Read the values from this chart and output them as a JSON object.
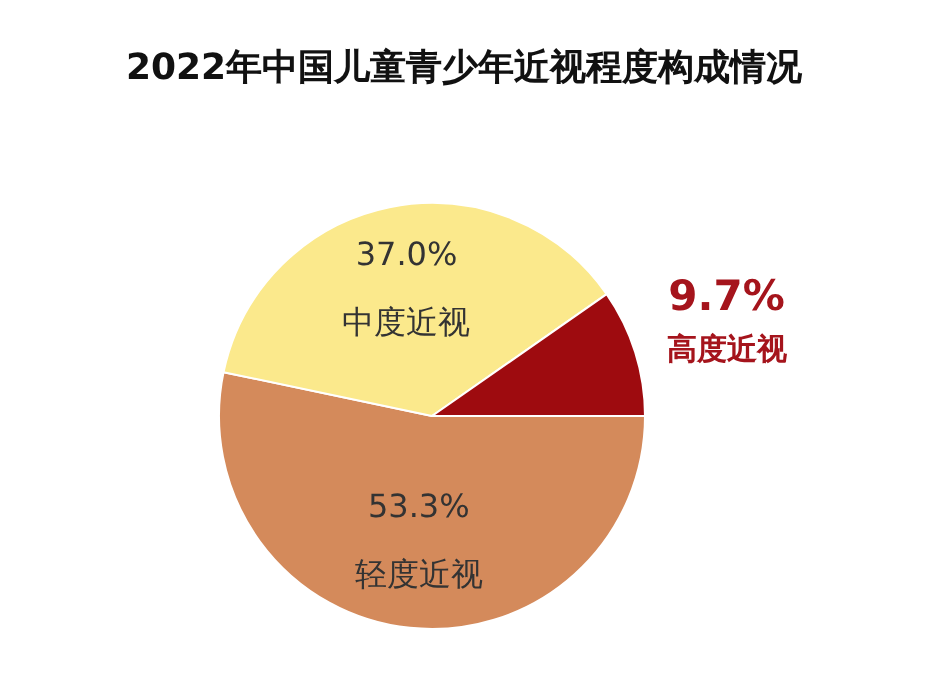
{
  "chart_data": {
    "type": "pie",
    "title": "2022年中国儿童青少年近视程度构成情况",
    "categories": [
      "轻度近视",
      "中度近视",
      "高度近视"
    ],
    "values": [
      53.3,
      37.0,
      9.7
    ],
    "colors": [
      "#d48a5b",
      "#fbe98c",
      "#9e0b0f"
    ],
    "value_labels": [
      "53.3%",
      "37.0%",
      "9.7%"
    ],
    "legend": false
  }
}
